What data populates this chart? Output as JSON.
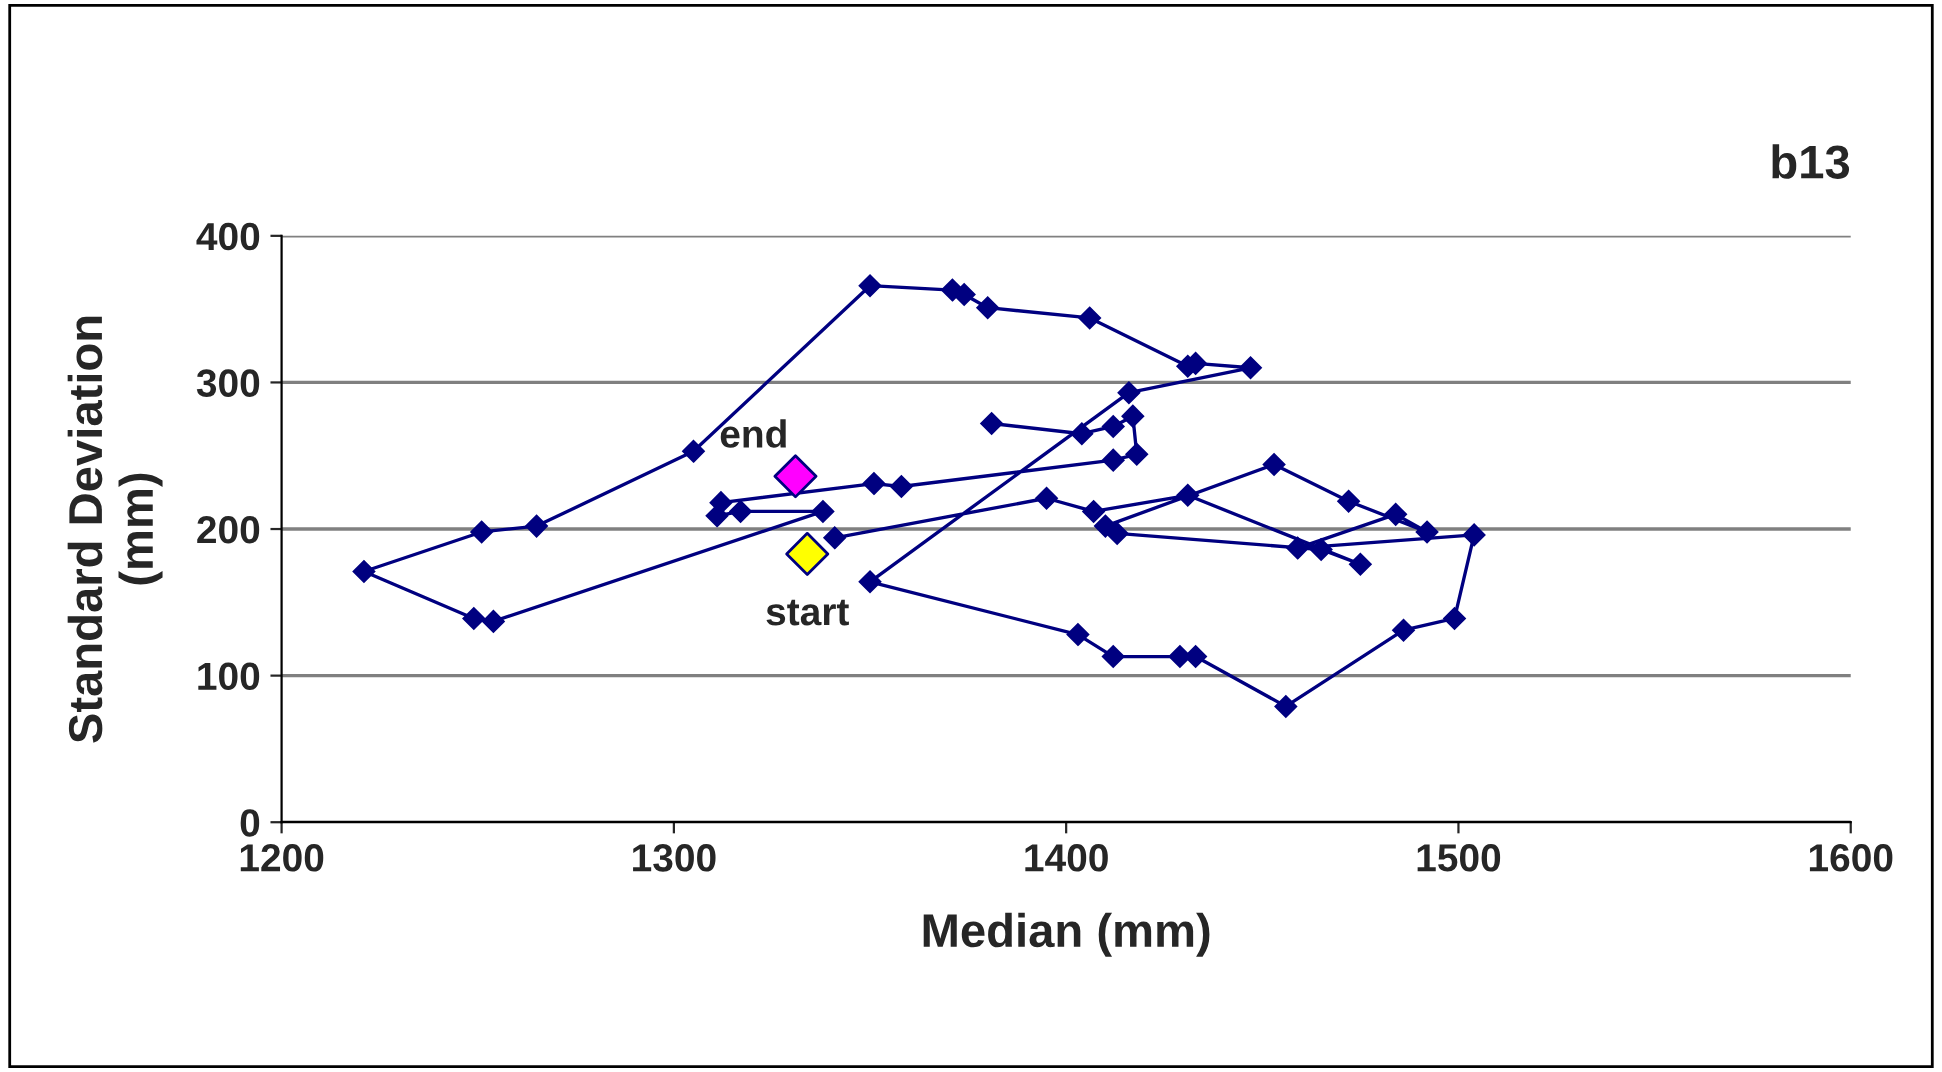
{
  "chart_data": {
    "type": "line",
    "title": "b13",
    "xlabel": "Median (mm)",
    "ylabel": "Standard Deviation\n(mm)",
    "xlim": [
      1200,
      1600
    ],
    "xticks": [
      1200,
      1300,
      1400,
      1500,
      1600
    ],
    "ylim": [
      0,
      400
    ],
    "yticks": [
      0,
      100,
      200,
      300,
      400
    ],
    "grid": "y",
    "marker": "diamond",
    "line_style": "solid",
    "series": [
      {
        "color": "#000080",
        "x": [
          1341,
          1395,
          1407,
          1431,
          1475,
          1465,
          1413,
          1410,
          1453,
          1472,
          1492,
          1484,
          1459,
          1504,
          1499,
          1486,
          1456,
          1433,
          1429,
          1412,
          1403,
          1350,
          1416,
          1447,
          1433,
          1431,
          1406,
          1380,
          1374,
          1371,
          1350,
          1305,
          1265,
          1251,
          1221,
          1249,
          1254,
          1338,
          1317,
          1311,
          1312,
          1351,
          1358,
          1412,
          1418,
          1417,
          1412,
          1404,
          1381
        ],
        "values": [
          194,
          221,
          212,
          223,
          176,
          186,
          197,
          202,
          244,
          219,
          198,
          210,
          187,
          196,
          139,
          131,
          79,
          113,
          113,
          113,
          128,
          164,
          293,
          310,
          313,
          311,
          344,
          351,
          360,
          363,
          366,
          253,
          202,
          198,
          171,
          139,
          137,
          212,
          212,
          209,
          218,
          231,
          229,
          247,
          251,
          277,
          270,
          265,
          272
        ]
      },
      {
        "type": "scatter",
        "color": "#ffff00",
        "x": [
          1334
        ],
        "values": [
          183
        ]
      },
      {
        "type": "scatter",
        "color": "#ff00ff",
        "x": [
          1331
        ],
        "values": [
          236
        ]
      }
    ],
    "annotations": [
      {
        "text": "start",
        "x": 1334,
        "y": 183
      },
      {
        "text": "end",
        "x": 1331,
        "y": 236
      }
    ]
  }
}
